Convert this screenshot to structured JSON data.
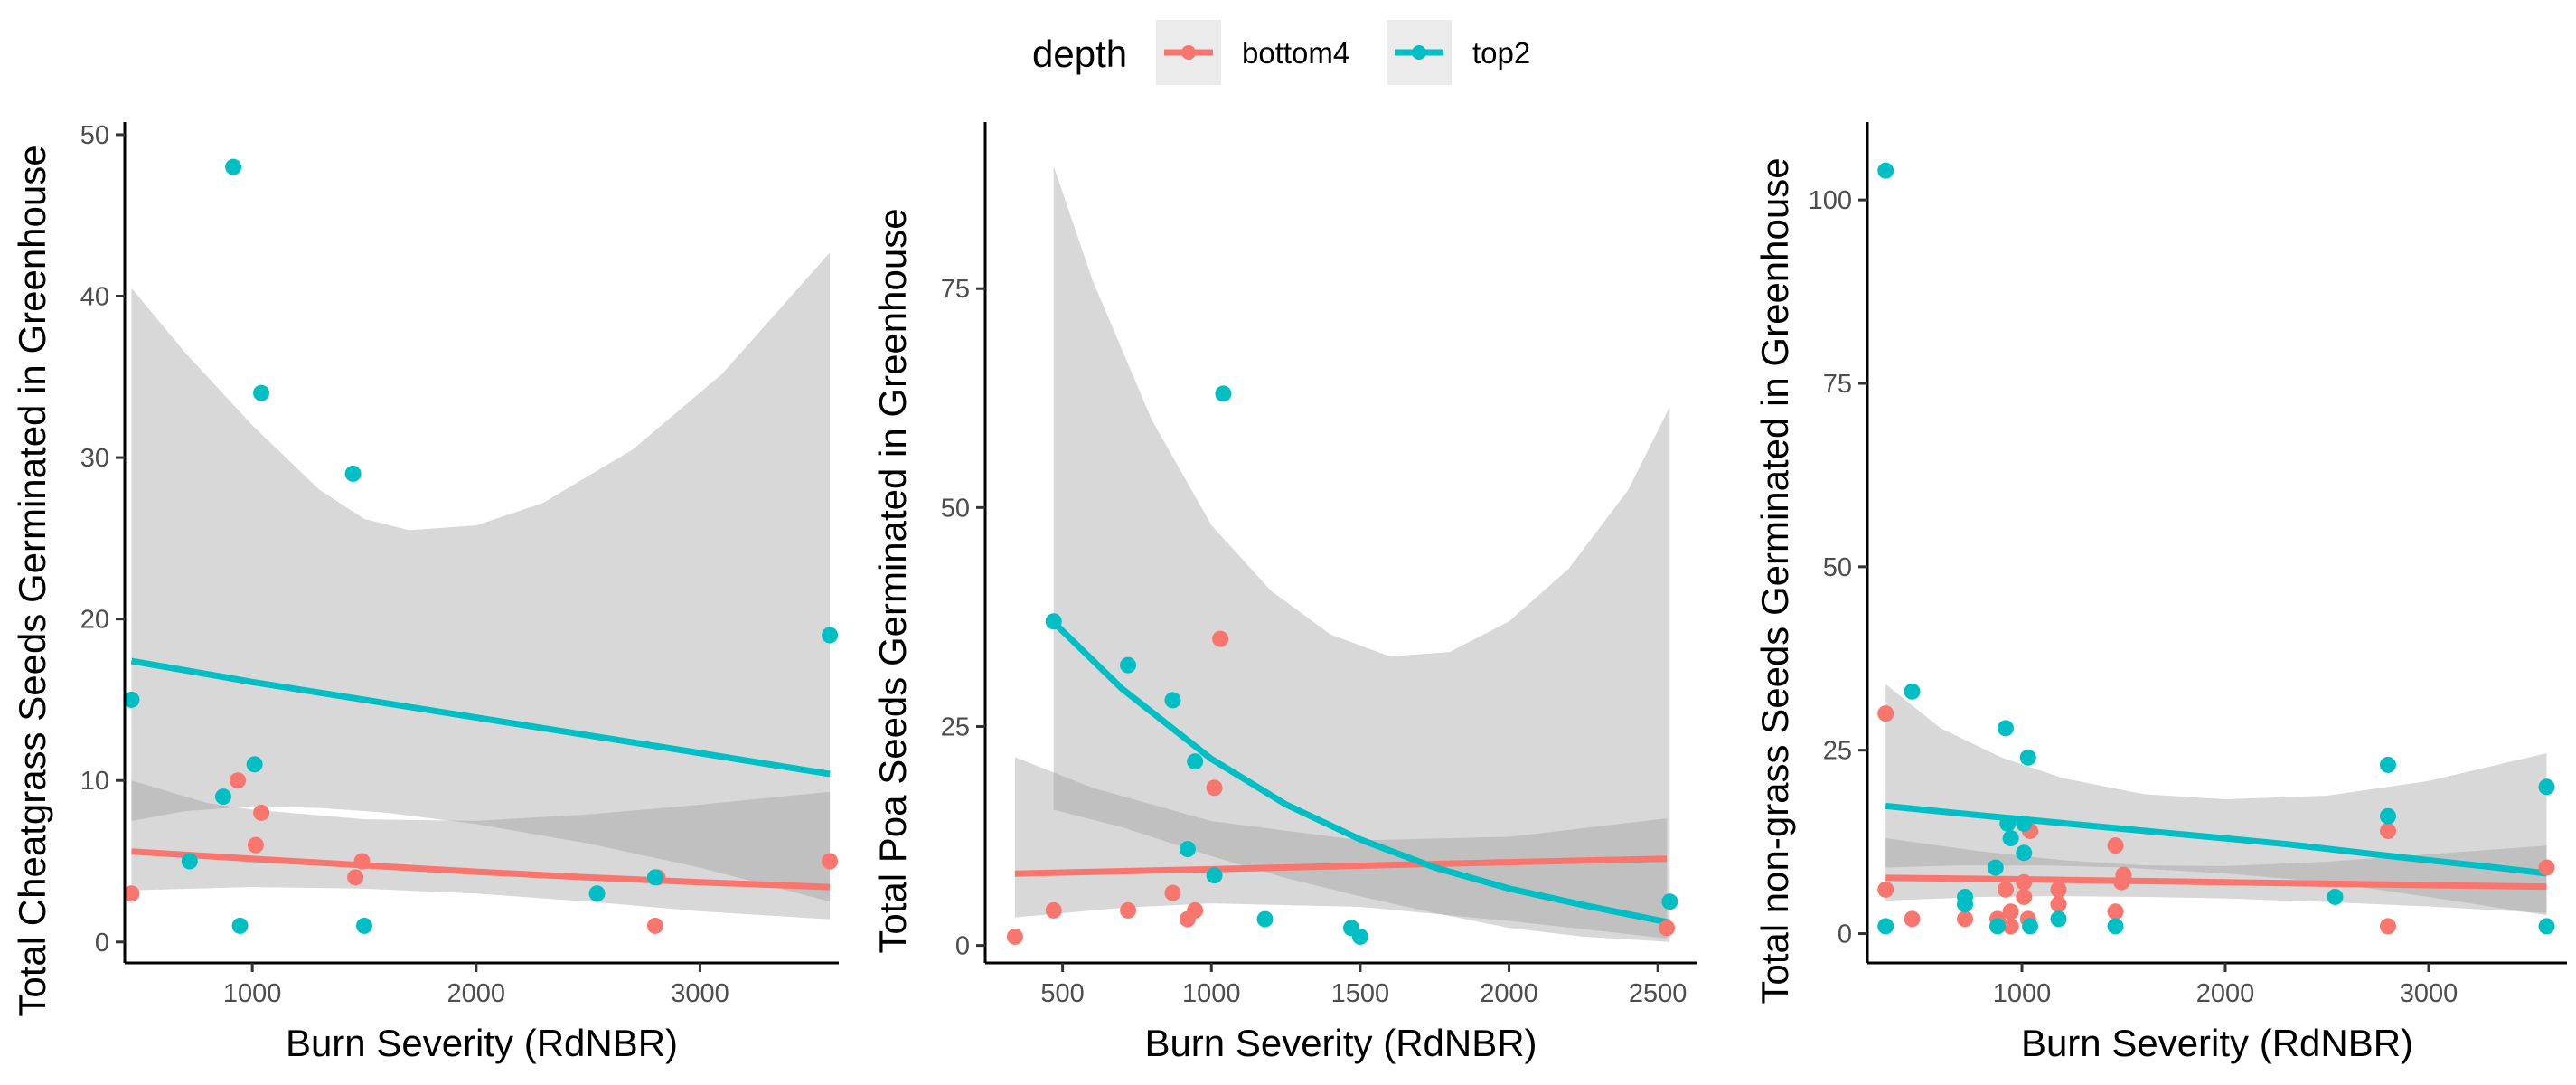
{
  "legend": {
    "title": "depth",
    "items": [
      {
        "label": "bottom4",
        "color": "#F8766D"
      },
      {
        "label": "top2",
        "color": "#00BFC4"
      }
    ]
  },
  "chart_data": [
    {
      "type": "scatter",
      "xlabel": "Burn Severity (RdNBR)",
      "ylabel": "Total Cheatgrass Seeds Germinated in Greenhouse",
      "xlim": [
        430,
        3620
      ],
      "ylim": [
        -1.3,
        50.5
      ],
      "xticks": [
        1000,
        2000,
        3000
      ],
      "yticks": [
        0,
        10,
        20,
        30,
        40,
        50
      ],
      "series": [
        {
          "name": "bottom4",
          "color": "#F8766D",
          "points": [
            [
              460,
              3
            ],
            [
              935,
              10
            ],
            [
              1015,
              6
            ],
            [
              1040,
              8
            ],
            [
              1460,
              4
            ],
            [
              1490,
              5
            ],
            [
              2800,
              1
            ],
            [
              2810,
              4
            ],
            [
              3580,
              5
            ]
          ],
          "fit": [
            [
              460,
              5.6
            ],
            [
              1000,
              5.15
            ],
            [
              1500,
              4.75
            ],
            [
              2000,
              4.35
            ],
            [
              2500,
              4.0
            ],
            [
              3000,
              3.7
            ],
            [
              3580,
              3.4
            ]
          ],
          "ci_upper": [
            [
              460,
              10.0
            ],
            [
              800,
              8.6
            ],
            [
              1000,
              8.2
            ],
            [
              1500,
              7.6
            ],
            [
              2000,
              7.5
            ],
            [
              2500,
              7.9
            ],
            [
              3000,
              8.5
            ],
            [
              3580,
              9.3
            ]
          ],
          "ci_lower": [
            [
              460,
              3.2
            ],
            [
              1000,
              3.4
            ],
            [
              1500,
              3.3
            ],
            [
              2000,
              3.0
            ],
            [
              2500,
              2.5
            ],
            [
              3000,
              1.9
            ],
            [
              3580,
              1.4
            ]
          ]
        },
        {
          "name": "top2",
          "color": "#00BFC4",
          "points": [
            [
              460,
              15
            ],
            [
              720,
              5
            ],
            [
              870,
              9
            ],
            [
              915,
              48
            ],
            [
              945,
              1
            ],
            [
              1010,
              11
            ],
            [
              1040,
              34
            ],
            [
              1450,
              29
            ],
            [
              1500,
              1
            ],
            [
              2540,
              3
            ],
            [
              2800,
              4
            ],
            [
              3580,
              19
            ]
          ],
          "fit": [
            [
              460,
              17.4
            ],
            [
              1000,
              16.1
            ],
            [
              1500,
              15.0
            ],
            [
              2000,
              13.9
            ],
            [
              2500,
              12.8
            ],
            [
              3000,
              11.7
            ],
            [
              3580,
              10.4
            ]
          ],
          "ci_upper": [
            [
              460,
              40.5
            ],
            [
              700,
              36.5
            ],
            [
              1000,
              32.0
            ],
            [
              1300,
              28.0
            ],
            [
              1500,
              26.2
            ],
            [
              1700,
              25.5
            ],
            [
              2000,
              25.8
            ],
            [
              2300,
              27.2
            ],
            [
              2700,
              30.5
            ],
            [
              3100,
              35.2
            ],
            [
              3580,
              42.7
            ]
          ],
          "ci_lower": [
            [
              460,
              7.5
            ],
            [
              700,
              8.1
            ],
            [
              1000,
              8.4
            ],
            [
              1300,
              8.3
            ],
            [
              1600,
              8.0
            ],
            [
              2000,
              7.3
            ],
            [
              2500,
              6.1
            ],
            [
              3000,
              4.6
            ],
            [
              3580,
              2.5
            ]
          ]
        }
      ]
    },
    {
      "type": "scatter",
      "xlabel": "Burn Severity (RdNBR)",
      "ylabel": "Total Poa Seeds Germinated in Greenhouse",
      "xlim": [
        240,
        2630
      ],
      "ylim": [
        -2,
        93.5
      ],
      "xticks": [
        500,
        1000,
        1500,
        2000,
        2500
      ],
      "yticks": [
        0,
        25,
        50,
        75
      ],
      "series": [
        {
          "name": "bottom4",
          "color": "#F8766D",
          "points": [
            [
              340,
              1
            ],
            [
              470,
              4
            ],
            [
              720,
              4
            ],
            [
              870,
              6
            ],
            [
              920,
              3
            ],
            [
              945,
              4
            ],
            [
              1010,
              18
            ],
            [
              1030,
              35
            ],
            [
              2530,
              2
            ]
          ],
          "fit": [
            [
              340,
              8.2
            ],
            [
              1000,
              8.7
            ],
            [
              1500,
              9.1
            ],
            [
              2000,
              9.5
            ],
            [
              2530,
              9.9
            ]
          ],
          "ci_upper": [
            [
              340,
              21.5
            ],
            [
              600,
              18.0
            ],
            [
              1000,
              14.2
            ],
            [
              1500,
              12.0
            ],
            [
              2000,
              12.4
            ],
            [
              2530,
              14.5
            ]
          ],
          "ci_lower": [
            [
              340,
              3.2
            ],
            [
              700,
              4.3
            ],
            [
              1000,
              4.8
            ],
            [
              1500,
              4.4
            ],
            [
              2000,
              2.8
            ],
            [
              2530,
              0.8
            ]
          ]
        },
        {
          "name": "top2",
          "color": "#00BFC4",
          "points": [
            [
              470,
              37
            ],
            [
              720,
              32
            ],
            [
              870,
              28
            ],
            [
              920,
              11
            ],
            [
              945,
              21
            ],
            [
              1010,
              8
            ],
            [
              1040,
              63
            ],
            [
              1180,
              3
            ],
            [
              1470,
              2
            ],
            [
              1500,
              1
            ],
            [
              2540,
              5
            ]
          ],
          "fit": [
            [
              470,
              36.9
            ],
            [
              700,
              29.3
            ],
            [
              1000,
              21.3
            ],
            [
              1250,
              16.1
            ],
            [
              1500,
              12.1
            ],
            [
              1750,
              8.9
            ],
            [
              2000,
              6.5
            ],
            [
              2250,
              4.6
            ],
            [
              2540,
              2.6
            ]
          ],
          "ci_upper": [
            [
              470,
              89.0
            ],
            [
              600,
              76.0
            ],
            [
              800,
              60.0
            ],
            [
              1000,
              48.0
            ],
            [
              1200,
              40.5
            ],
            [
              1400,
              35.5
            ],
            [
              1600,
              33.0
            ],
            [
              1800,
              33.5
            ],
            [
              2000,
              37.0
            ],
            [
              2200,
              43.0
            ],
            [
              2400,
              52.0
            ],
            [
              2540,
              61.5
            ]
          ],
          "ci_lower": [
            [
              470,
              15.5
            ],
            [
              700,
              13.5
            ],
            [
              1000,
              10.2
            ],
            [
              1250,
              7.7
            ],
            [
              1500,
              5.6
            ],
            [
              1750,
              3.7
            ],
            [
              2000,
              2.0
            ],
            [
              2250,
              1.0
            ],
            [
              2540,
              0.4
            ]
          ]
        }
      ]
    },
    {
      "type": "scatter",
      "xlabel": "Burn Severity (RdNBR)",
      "ylabel": "Total non-grass Seeds Germinated in Greenhouse",
      "xlim": [
        240,
        3680
      ],
      "ylim": [
        -4,
        110
      ],
      "xticks": [
        1000,
        2000,
        3000
      ],
      "yticks": [
        0,
        25,
        50,
        75,
        100
      ],
      "series": [
        {
          "name": "bottom4",
          "color": "#F8766D",
          "points": [
            [
              330,
              30
            ],
            [
              330,
              6
            ],
            [
              460,
              2
            ],
            [
              720,
              2
            ],
            [
              880,
              2
            ],
            [
              920,
              6
            ],
            [
              945,
              3
            ],
            [
              945,
              1
            ],
            [
              1010,
              5
            ],
            [
              1010,
              7
            ],
            [
              1030,
              2
            ],
            [
              1040,
              14
            ],
            [
              1180,
              4
            ],
            [
              1180,
              6
            ],
            [
              1460,
              3
            ],
            [
              1460,
              12
            ],
            [
              1490,
              7
            ],
            [
              1500,
              8
            ],
            [
              2800,
              14
            ],
            [
              2800,
              1
            ],
            [
              3580,
              9
            ]
          ],
          "fit": [
            [
              330,
              7.6
            ],
            [
              1000,
              7.4
            ],
            [
              1500,
              7.2
            ],
            [
              2000,
              7.0
            ],
            [
              2500,
              6.8
            ],
            [
              3000,
              6.6
            ],
            [
              3580,
              6.4
            ]
          ],
          "ci_upper": [
            [
              330,
              13.0
            ],
            [
              800,
              11.2
            ],
            [
              1200,
              10.0
            ],
            [
              1600,
              9.3
            ],
            [
              2000,
              9.2
            ],
            [
              2500,
              9.8
            ],
            [
              3000,
              10.8
            ],
            [
              3580,
              12.0
            ]
          ],
          "ci_lower": [
            [
              330,
              4.5
            ],
            [
              800,
              5.0
            ],
            [
              1200,
              5.1
            ],
            [
              1600,
              5.0
            ],
            [
              2000,
              4.8
            ],
            [
              2500,
              4.3
            ],
            [
              3000,
              3.7
            ],
            [
              3580,
              2.8
            ]
          ]
        },
        {
          "name": "top2",
          "color": "#00BFC4",
          "points": [
            [
              330,
              104
            ],
            [
              330,
              1
            ],
            [
              460,
              33
            ],
            [
              720,
              5
            ],
            [
              720,
              4
            ],
            [
              870,
              9
            ],
            [
              880,
              1
            ],
            [
              920,
              28
            ],
            [
              930,
              15
            ],
            [
              945,
              13
            ],
            [
              1010,
              11
            ],
            [
              1010,
              15
            ],
            [
              1030,
              24
            ],
            [
              1040,
              1
            ],
            [
              1180,
              2
            ],
            [
              1460,
              1
            ],
            [
              2540,
              5
            ],
            [
              2800,
              23
            ],
            [
              2800,
              16
            ],
            [
              3580,
              20
            ],
            [
              3580,
              1
            ]
          ],
          "fit": [
            [
              330,
              17.4
            ],
            [
              800,
              16.1
            ],
            [
              1300,
              14.8
            ],
            [
              1800,
              13.5
            ],
            [
              2300,
              12.2
            ],
            [
              2800,
              10.6
            ],
            [
              3300,
              9.1
            ],
            [
              3580,
              8.2
            ]
          ],
          "ci_upper": [
            [
              330,
              34.0
            ],
            [
              600,
              28.0
            ],
            [
              900,
              24.0
            ],
            [
              1200,
              21.2
            ],
            [
              1600,
              19.0
            ],
            [
              2000,
              18.3
            ],
            [
              2500,
              18.8
            ],
            [
              3000,
              20.8
            ],
            [
              3580,
              24.6
            ]
          ],
          "ci_lower": [
            [
              330,
              9.0
            ],
            [
              700,
              9.3
            ],
            [
              1100,
              9.3
            ],
            [
              1500,
              9.0
            ],
            [
              2000,
              8.2
            ],
            [
              2500,
              7.0
            ],
            [
              3000,
              5.0
            ],
            [
              3580,
              2.5
            ]
          ]
        }
      ]
    }
  ]
}
